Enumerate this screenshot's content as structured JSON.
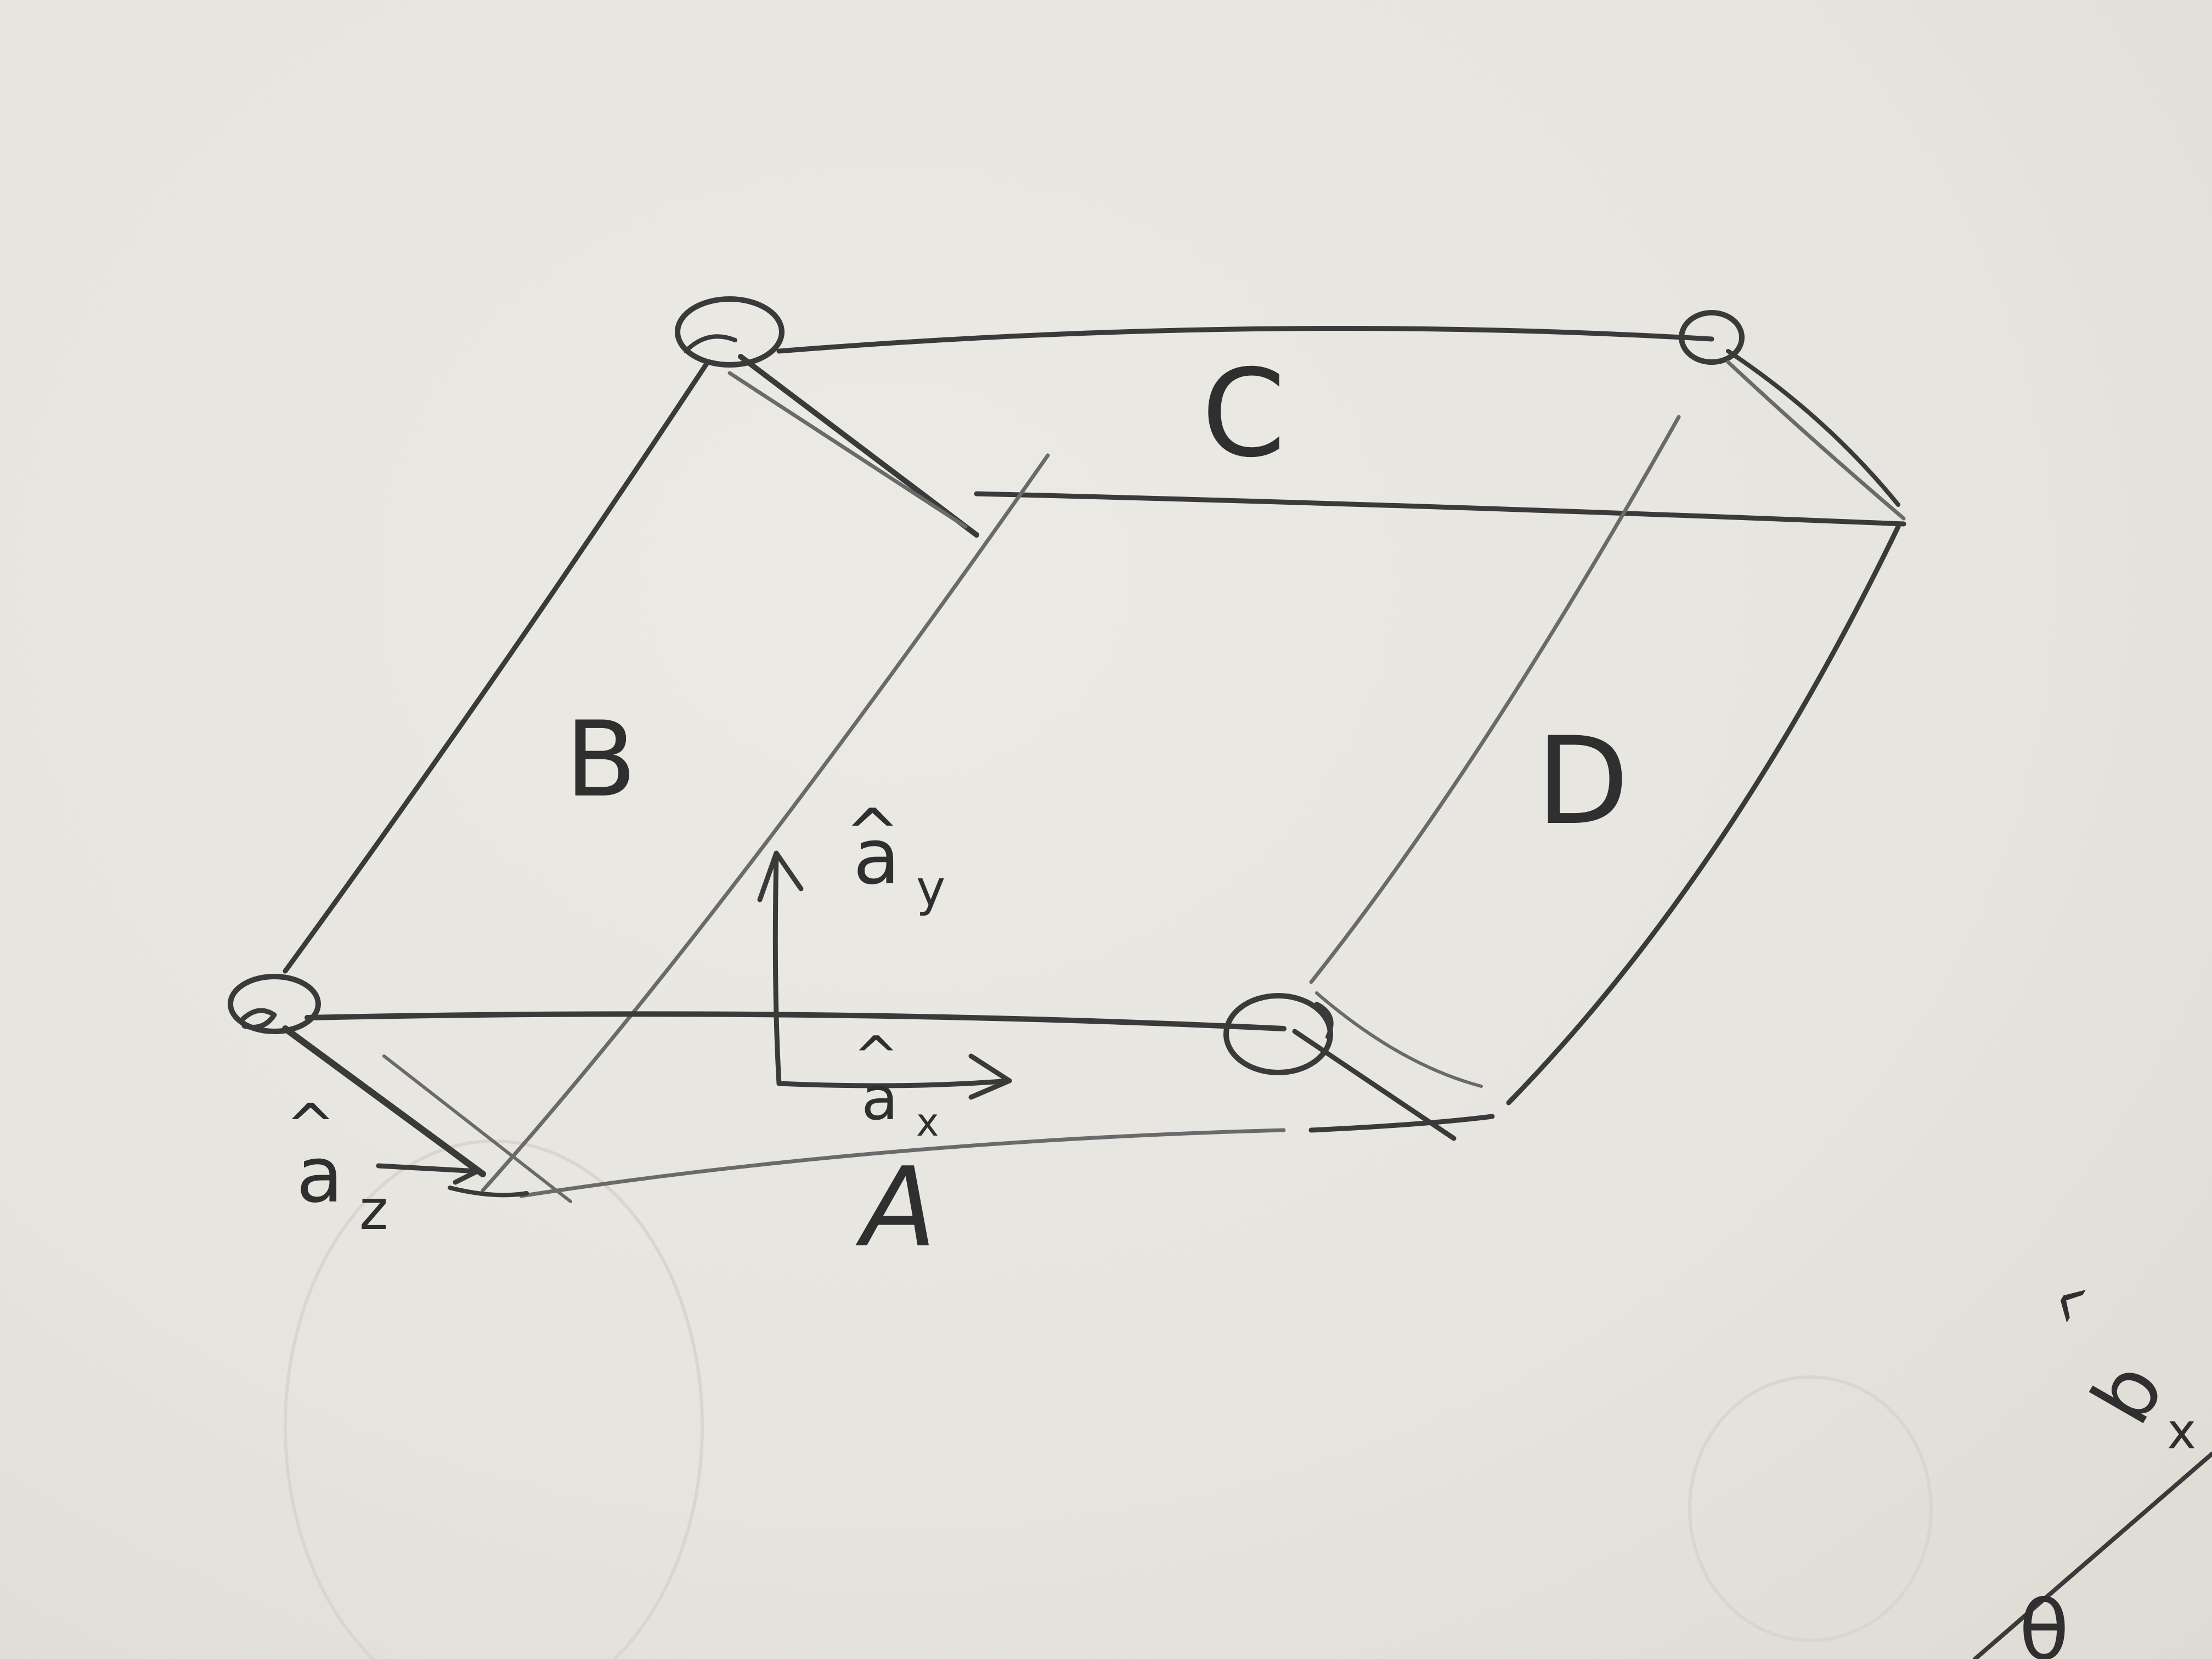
{
  "diagram": {
    "labels": {
      "A": "A",
      "B": "B",
      "C": "C",
      "D": "D"
    },
    "unit_vectors": {
      "a_x": "a",
      "a_x_sub": "x",
      "a_y": "a",
      "a_y_sub": "y",
      "a_z": "a",
      "a_z_sub": "z",
      "hat": "^",
      "b_x": "b",
      "b_x_sub": "x"
    },
    "partial_text": "θ",
    "ink_color": "#3a3a3a"
  }
}
